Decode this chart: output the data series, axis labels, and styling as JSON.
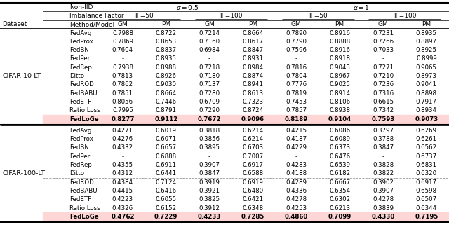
{
  "figsize": [
    6.4,
    3.54
  ],
  "dpi": 100,
  "dataset_label1": "CIFAR-10-LT",
  "dataset_label2": "CIFAR-100-LT",
  "rows_cifar10": [
    [
      "FedAvg",
      "0.7988",
      "0.8722",
      "0.7214",
      "0.8664",
      "0.7890",
      "0.8916",
      "0.7231",
      "0.8935"
    ],
    [
      "FedProx",
      "0.7869",
      "0.8653",
      "0.7160",
      "0.8617",
      "0.7790",
      "0.8888",
      "0.7266",
      "0.8897"
    ],
    [
      "FedBN",
      "0.7604",
      "0.8837",
      "0.6984",
      "0.8847",
      "0.7596",
      "0.8916",
      "0.7033",
      "0.8925"
    ],
    [
      "FedPer",
      "-",
      "0.8935",
      "-",
      "0.8931",
      "-",
      "0.8918",
      "-",
      "0.8999"
    ],
    [
      "FedRep",
      "0.7938",
      "0.8988",
      "0.7218",
      "0.8984",
      "0.7816",
      "0.9043",
      "0.7271",
      "0.9065"
    ],
    [
      "Ditto",
      "0.7813",
      "0.8926",
      "0.7180",
      "0.8874",
      "0.7804",
      "0.8967",
      "0.7210",
      "0.8973"
    ],
    [
      "FedROD",
      "0.7862",
      "0.9030",
      "0.7137",
      "0.8941",
      "0.7776",
      "0.9025",
      "0.7236",
      "0.9041"
    ],
    [
      "FedBABU",
      "0.7851",
      "0.8664",
      "0.7280",
      "0.8613",
      "0.7819",
      "0.8914",
      "0.7316",
      "0.8898"
    ],
    [
      "FedETF",
      "0.8056",
      "0.7446",
      "0.6709",
      "0.7323",
      "0.7453",
      "0.8106",
      "0.6615",
      "0.7917"
    ],
    [
      "Ratio Loss",
      "0.7995",
      "0.8791",
      "0.7290",
      "0.8724",
      "0.7857",
      "0.8938",
      "0.7342",
      "0.8934"
    ],
    [
      "FedLoGe",
      "0.8277",
      "0.9112",
      "0.7672",
      "0.9096",
      "0.8189",
      "0.9104",
      "0.7593",
      "0.9073"
    ]
  ],
  "rows_cifar100": [
    [
      "FedAvg",
      "0.4271",
      "0.6019",
      "0.3818",
      "0.6214",
      "0.4215",
      "0.6086",
      "0.3797",
      "0.6269"
    ],
    [
      "FedProx",
      "0.4276",
      "0.6071",
      "0.3856",
      "0.6214",
      "0.4187",
      "0.6089",
      "0.3788",
      "0.6261"
    ],
    [
      "FedBN",
      "0.4332",
      "0.6657",
      "0.3895",
      "0.6703",
      "0.4229",
      "0.6373",
      "0.3847",
      "0.6562"
    ],
    [
      "FedPer",
      "-",
      "0.6888",
      "-",
      "0.7007",
      "-",
      "0.6476",
      "-",
      "0.6737"
    ],
    [
      "FedRep",
      "0.4355",
      "0.6911",
      "0.3907",
      "0.6917",
      "0.4283",
      "0.6539",
      "0.3828",
      "0.6831"
    ],
    [
      "Ditto",
      "0.4312",
      "0.6441",
      "0.3847",
      "0.6588",
      "0.4188",
      "0.6182",
      "0.3822",
      "0.6320"
    ],
    [
      "FedROD",
      "0.4384",
      "0.7124",
      "0.3919",
      "0.6919",
      "0.4289",
      "0.6667",
      "0.3902",
      "0.6917"
    ],
    [
      "FedBABU",
      "0.4415",
      "0.6416",
      "0.3921",
      "0.6480",
      "0.4336",
      "0.6354",
      "0.3907",
      "0.6598"
    ],
    [
      "FedETF",
      "0.4223",
      "0.6055",
      "0.3825",
      "0.6421",
      "0.4278",
      "0.6302",
      "0.4278",
      "0.6507"
    ],
    [
      "Ratio Loss",
      "0.4326",
      "0.6152",
      "0.3912",
      "0.6348",
      "0.4253",
      "0.6213",
      "0.3839",
      "0.6344"
    ],
    [
      "FedLoGe",
      "0.4762",
      "0.7229",
      "0.4233",
      "0.7285",
      "0.4860",
      "0.7099",
      "0.4330",
      "0.7195"
    ]
  ],
  "fedloge_bg": "#FFD6D6",
  "font_size_data": 6.2,
  "font_size_header": 6.5,
  "font_size_dataset": 6.8
}
